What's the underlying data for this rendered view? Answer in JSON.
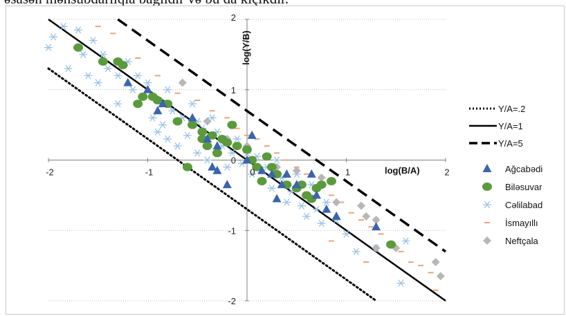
{
  "top_text": "əsasən mənsubdarlıqla bağlıdır və bu da kiçikdir.",
  "colors": {
    "agcabedi": "#3b64ad",
    "bilesuvar": "#5a9a3c",
    "celilabad": "#9cc2e6",
    "ismayilli": "#f0a27c",
    "neftcala": "#b7b7b7",
    "grid": "#bfbfbf",
    "lines": "#000000"
  },
  "chart_data": {
    "type": "scatter",
    "xlabel": "log(B/A)",
    "ylabel": "log(Y/B)",
    "xlim": [
      -2,
      2
    ],
    "ylim": [
      -2,
      2
    ],
    "x_ticks": [
      -2,
      -1,
      0,
      1,
      2
    ],
    "y_ticks": [
      2,
      1,
      0,
      -1,
      -2
    ],
    "x_tick_labels": [
      "-2",
      "-1",
      "0",
      "1",
      "2"
    ],
    "y_tick_labels": [
      "2",
      "1",
      "0",
      "-1",
      "-2"
    ],
    "grid": true,
    "legend_position": "right",
    "lines": [
      {
        "name": "Y/A=.2",
        "style": "dotted",
        "intercept": -0.699
      },
      {
        "name": "Y/A=1",
        "style": "solid",
        "intercept": 0
      },
      {
        "name": "Y/A=5",
        "style": "dashed",
        "intercept": 0.699
      }
    ],
    "series": [
      {
        "name": "Ağcabədi",
        "marker": "triangle",
        "color_key": "agcabedi",
        "points": [
          [
            -1.2,
            1.1
          ],
          [
            -1.0,
            1.0
          ],
          [
            -0.9,
            0.7
          ],
          [
            -0.85,
            0.8
          ],
          [
            -0.55,
            0.6
          ],
          [
            -0.4,
            0.3
          ],
          [
            -0.3,
            0.2
          ],
          [
            -0.35,
            -0.1
          ],
          [
            -0.3,
            -0.15
          ],
          [
            -0.2,
            -0.35
          ],
          [
            0.05,
            0.35
          ],
          [
            0.0,
            0.0
          ],
          [
            0.15,
            -0.15
          ],
          [
            0.25,
            -0.2
          ],
          [
            0.35,
            -0.35
          ],
          [
            0.4,
            -0.2
          ],
          [
            0.3,
            -0.55
          ],
          [
            0.5,
            -0.35
          ],
          [
            0.65,
            -0.2
          ],
          [
            0.7,
            -0.5
          ],
          [
            0.8,
            -0.7
          ],
          [
            0.9,
            -0.8
          ],
          [
            1.3,
            -0.95
          ]
        ]
      },
      {
        "name": "Biləsuvar",
        "marker": "circle",
        "color_key": "bilesuvar",
        "points": [
          [
            -1.7,
            1.6
          ],
          [
            -1.45,
            1.4
          ],
          [
            -1.3,
            1.4
          ],
          [
            -1.25,
            1.35
          ],
          [
            -1.1,
            0.8
          ],
          [
            -1.05,
            0.9
          ],
          [
            -0.95,
            0.9
          ],
          [
            -0.9,
            0.85
          ],
          [
            -0.8,
            0.8
          ],
          [
            -0.7,
            0.55
          ],
          [
            -0.55,
            0.5
          ],
          [
            -0.45,
            0.4
          ],
          [
            -0.45,
            0.3
          ],
          [
            -0.4,
            0.2
          ],
          [
            -0.35,
            0.35
          ],
          [
            -0.3,
            0.1
          ],
          [
            -0.25,
            0.3
          ],
          [
            -0.2,
            0.25
          ],
          [
            -0.15,
            0.5
          ],
          [
            -0.1,
            0.2
          ],
          [
            0.0,
            0.15
          ],
          [
            0.05,
            0.0
          ],
          [
            0.1,
            -0.1
          ],
          [
            0.15,
            -0.3
          ],
          [
            0.2,
            0.05
          ],
          [
            0.25,
            -0.1
          ],
          [
            0.3,
            -0.2
          ],
          [
            0.4,
            -0.35
          ],
          [
            0.5,
            -0.4
          ],
          [
            0.55,
            -0.35
          ],
          [
            0.6,
            -0.5
          ],
          [
            0.65,
            -0.55
          ],
          [
            0.7,
            -0.4
          ],
          [
            0.75,
            -0.35
          ],
          [
            0.85,
            -0.3
          ],
          [
            1.45,
            -1.2
          ],
          [
            -0.6,
            -0.1
          ]
        ]
      },
      {
        "name": "Cəlilabad",
        "marker": "asterisk",
        "color_key": "celilabad",
        "points": [
          [
            -2.0,
            1.6
          ],
          [
            -1.95,
            1.75
          ],
          [
            -1.85,
            1.9
          ],
          [
            -1.7,
            1.85
          ],
          [
            -1.65,
            1.5
          ],
          [
            -1.55,
            1.7
          ],
          [
            -1.8,
            1.3
          ],
          [
            -1.6,
            1.2
          ],
          [
            -1.5,
            1.1
          ],
          [
            -1.45,
            1.5
          ],
          [
            -1.4,
            1.3
          ],
          [
            -1.3,
            1.2
          ],
          [
            -1.3,
            0.8
          ],
          [
            -1.2,
            1.4
          ],
          [
            -1.15,
            1.0
          ],
          [
            -1.1,
            1.2
          ],
          [
            -1.05,
            0.9
          ],
          [
            -1.0,
            1.1
          ],
          [
            -0.95,
            0.6
          ],
          [
            -0.9,
            0.4
          ],
          [
            -0.85,
            0.5
          ],
          [
            -0.8,
            1.0
          ],
          [
            -0.8,
            0.3
          ],
          [
            -0.75,
            0.7
          ],
          [
            -0.7,
            0.2
          ],
          [
            -0.65,
            0.6
          ],
          [
            -0.6,
            0.35
          ],
          [
            -0.55,
            0.8
          ],
          [
            -0.5,
            0.1
          ],
          [
            -0.5,
            0.55
          ],
          [
            -0.45,
            0.45
          ],
          [
            -0.4,
            0.0
          ],
          [
            -0.35,
            0.6
          ],
          [
            -0.3,
            0.4
          ],
          [
            -0.25,
            0.2
          ],
          [
            -0.2,
            -0.1
          ],
          [
            -0.15,
            0.1
          ],
          [
            -0.1,
            0.3
          ],
          [
            -0.05,
            -0.05
          ],
          [
            0.0,
            0.1
          ],
          [
            0.05,
            -0.2
          ],
          [
            0.1,
            0.05
          ],
          [
            0.15,
            -0.3
          ],
          [
            0.2,
            -0.1
          ],
          [
            0.25,
            -0.4
          ],
          [
            0.3,
            0.0
          ],
          [
            0.35,
            -0.25
          ],
          [
            0.4,
            -0.6
          ],
          [
            0.45,
            -0.45
          ],
          [
            0.5,
            -0.2
          ],
          [
            0.55,
            -0.65
          ],
          [
            0.6,
            -0.8
          ],
          [
            0.65,
            -0.35
          ],
          [
            0.7,
            -0.7
          ],
          [
            0.75,
            -0.9
          ],
          [
            0.8,
            -0.6
          ],
          [
            0.9,
            -0.85
          ],
          [
            1.0,
            -1.05
          ],
          [
            1.1,
            -1.3
          ],
          [
            1.3,
            -1.25
          ],
          [
            1.55,
            -1.75
          ],
          [
            1.6,
            -1.15
          ]
        ]
      },
      {
        "name": "İsmayıllı",
        "marker": "dash",
        "color_key": "ismayilli",
        "points": [
          [
            -1.5,
            1.9
          ],
          [
            -1.35,
            1.8
          ],
          [
            -1.1,
            1.45
          ],
          [
            -0.9,
            1.2
          ],
          [
            -0.7,
            0.95
          ],
          [
            -0.5,
            0.85
          ],
          [
            -0.35,
            0.7
          ],
          [
            -0.2,
            0.6
          ],
          [
            -0.1,
            0.45
          ],
          [
            0.0,
            0.35
          ],
          [
            0.1,
            0.3
          ],
          [
            0.2,
            0.2
          ],
          [
            0.3,
            0.1
          ],
          [
            0.4,
            0.0
          ],
          [
            0.5,
            -0.1
          ],
          [
            0.6,
            -0.2
          ],
          [
            0.7,
            -0.35
          ],
          [
            0.85,
            -0.5
          ],
          [
            0.95,
            -0.6
          ],
          [
            1.05,
            -0.75
          ],
          [
            1.15,
            -0.85
          ],
          [
            1.25,
            -0.95
          ],
          [
            1.35,
            -1.05
          ],
          [
            1.45,
            -1.2
          ],
          [
            1.55,
            -1.3
          ],
          [
            1.65,
            -1.45
          ],
          [
            1.75,
            -1.5
          ],
          [
            1.85,
            -1.6
          ],
          [
            1.9,
            -1.85
          ],
          [
            1.2,
            -1.45
          ],
          [
            0.85,
            -1.15
          ]
        ]
      },
      {
        "name": "Neftçala",
        "marker": "diamond",
        "color_key": "neftcala",
        "points": [
          [
            -0.65,
            1.1
          ],
          [
            -0.4,
            0.55
          ],
          [
            -0.2,
            0.3
          ],
          [
            0.0,
            0.2
          ],
          [
            0.3,
            -0.1
          ],
          [
            0.5,
            -0.15
          ],
          [
            0.75,
            -0.25
          ],
          [
            0.9,
            -0.6
          ],
          [
            1.15,
            -0.65
          ],
          [
            1.2,
            -0.8
          ],
          [
            1.3,
            -0.85
          ],
          [
            1.3,
            -1.25
          ],
          [
            1.5,
            -1.25
          ],
          [
            1.9,
            -1.45
          ],
          [
            1.95,
            -1.65
          ]
        ]
      }
    ]
  }
}
